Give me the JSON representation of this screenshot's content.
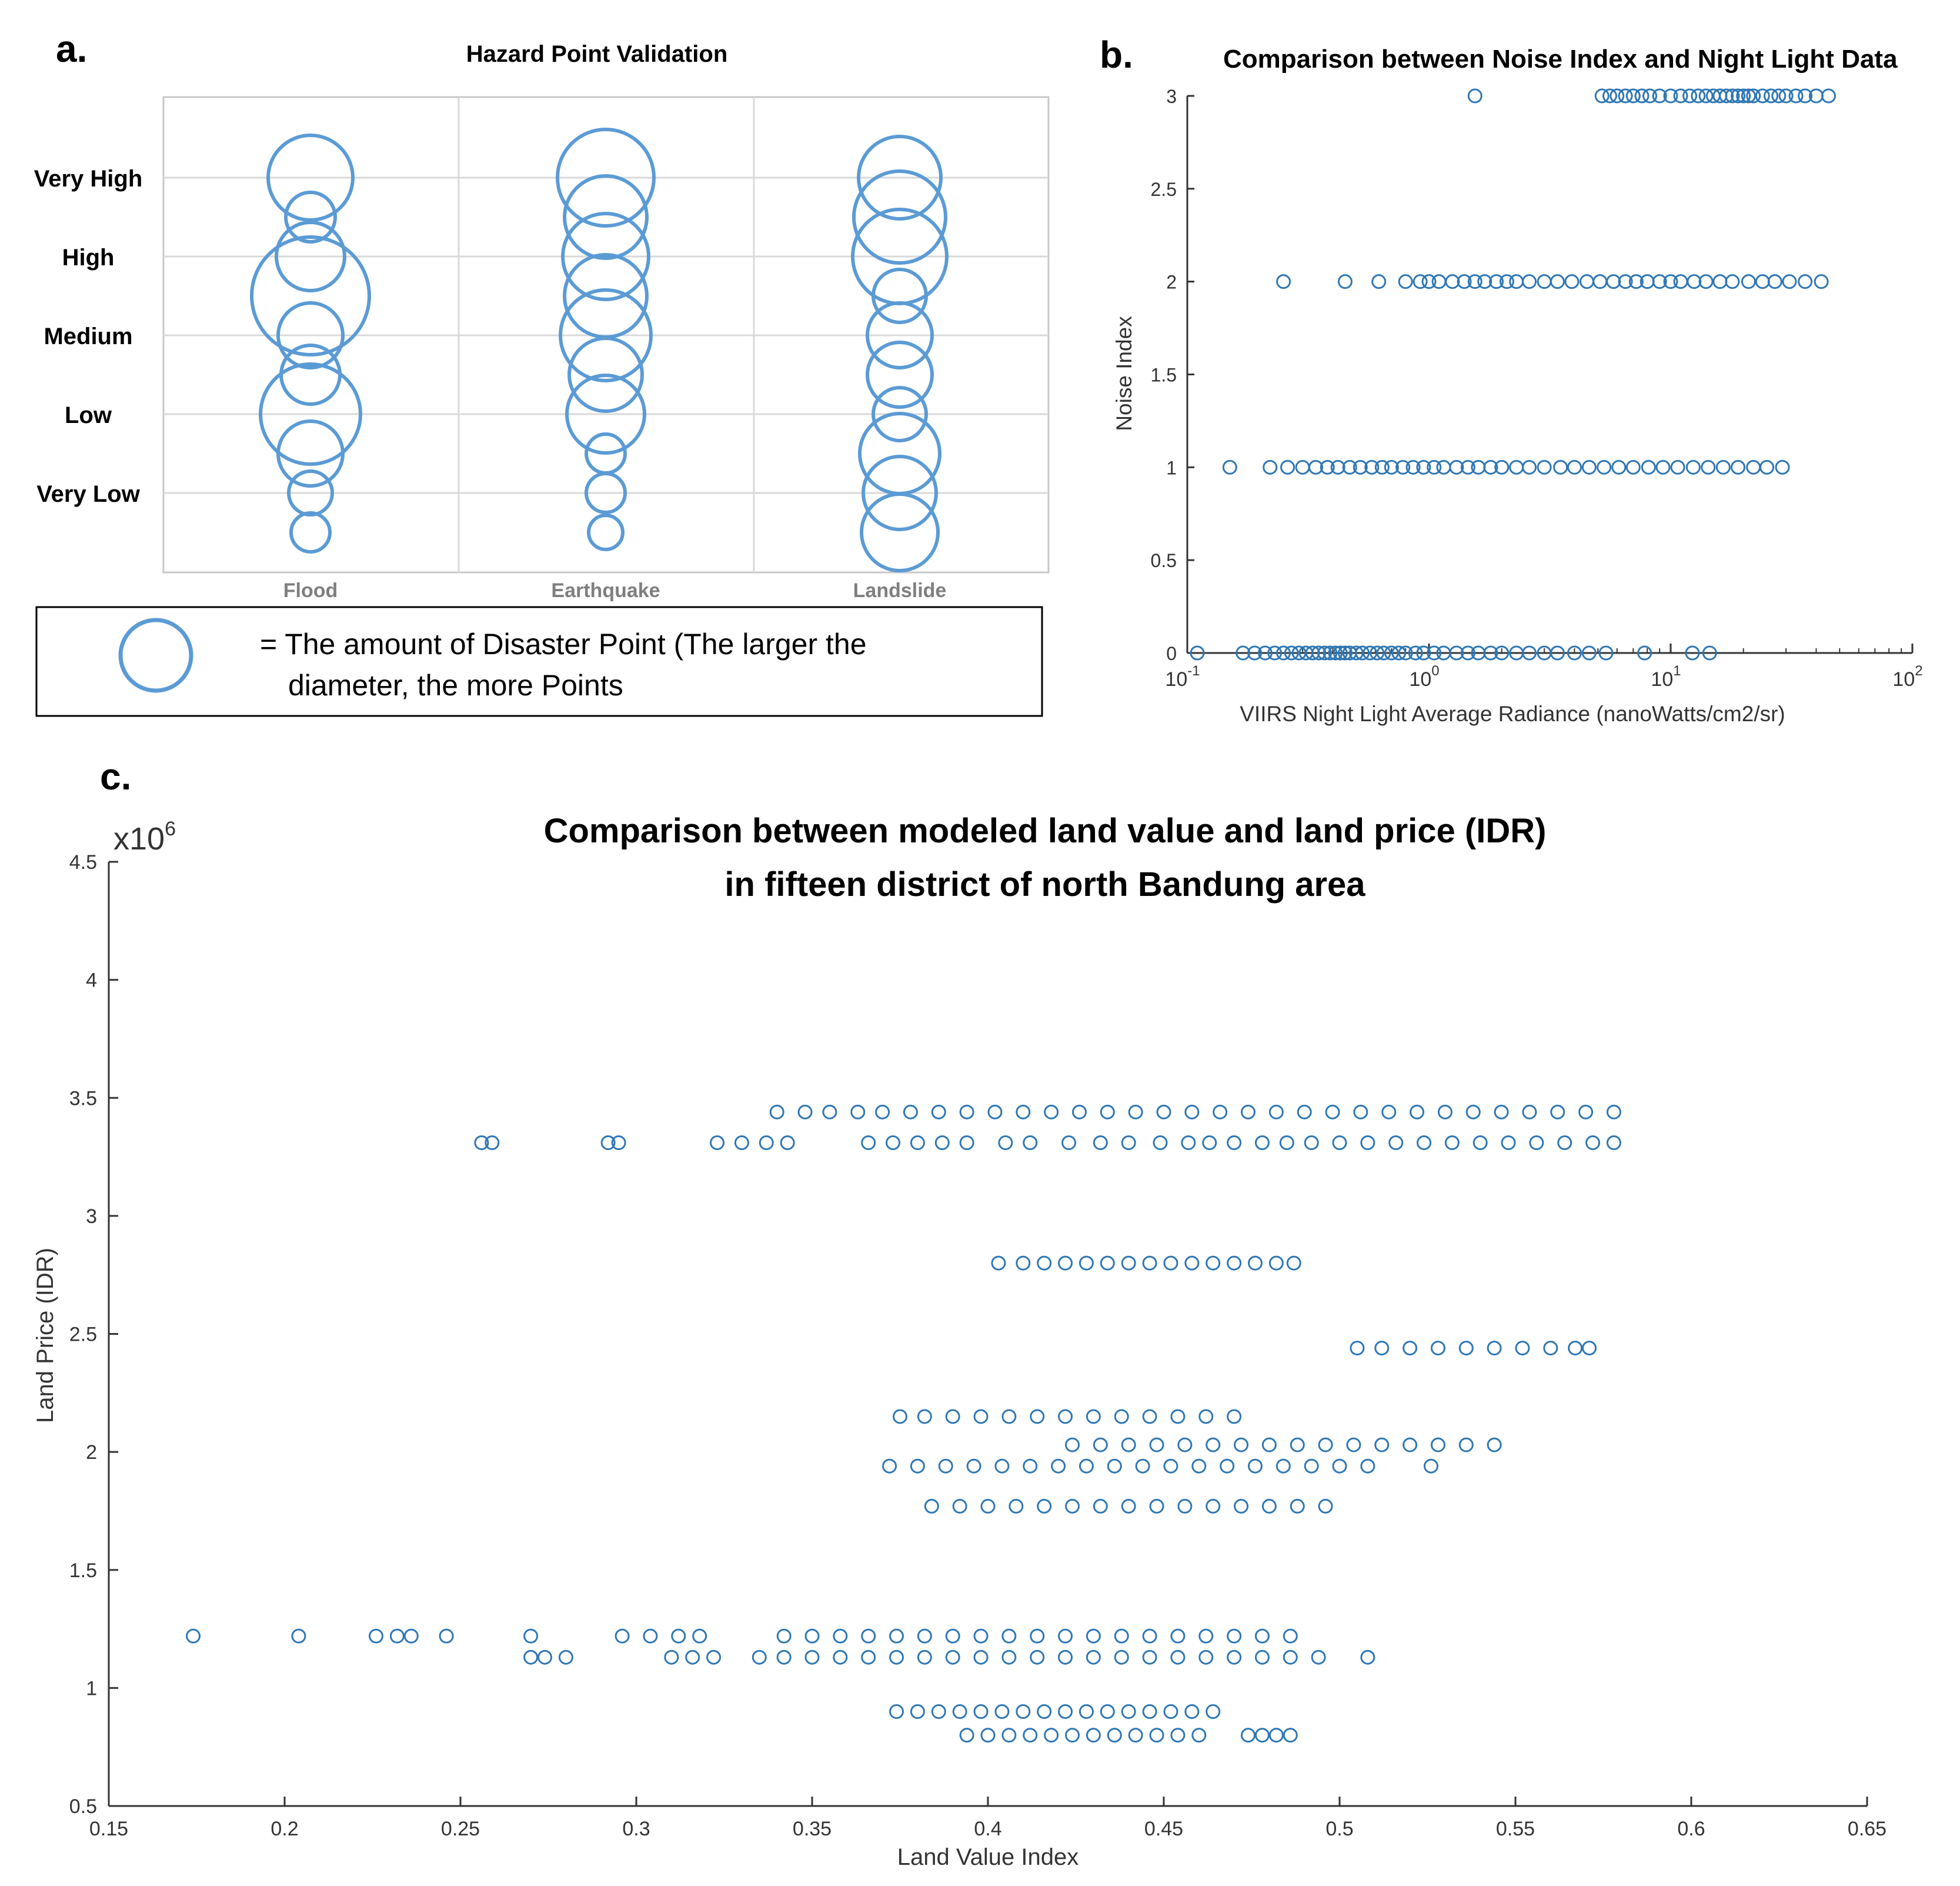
{
  "panels": {
    "a": {
      "label": "a.",
      "title": "Hazard Point Validation",
      "y_levels": [
        "Very High",
        "High",
        "Medium",
        "Low",
        "Very Low"
      ],
      "legend_prefix": "= The amount of Disaster Point (The larger the",
      "legend_line2": "diameter, the more Points",
      "chart_data": {
        "type": "bubble",
        "title": "Hazard Point Validation",
        "categories": [
          "Flood",
          "Earthquake",
          "Landslide"
        ],
        "y_levels": [
          "Very High",
          "High",
          "Medium",
          "Low",
          "Very Low"
        ],
        "note": "Bubble size proportional to amount of disaster points",
        "series": [
          {
            "name": "Flood",
            "bubbles": [
              {
                "level": 5.0,
                "size": 0.72
              },
              {
                "level": 4.5,
                "size": 0.42
              },
              {
                "level": 4.0,
                "size": 0.58
              },
              {
                "level": 3.5,
                "size": 1.0
              },
              {
                "level": 3.0,
                "size": 0.55
              },
              {
                "level": 2.5,
                "size": 0.5
              },
              {
                "level": 2.0,
                "size": 0.85
              },
              {
                "level": 1.5,
                "size": 0.55
              },
              {
                "level": 1.0,
                "size": 0.37
              },
              {
                "level": 0.5,
                "size": 0.33
              }
            ]
          },
          {
            "name": "Earthquake",
            "bubbles": [
              {
                "level": 5.0,
                "size": 0.82
              },
              {
                "level": 4.5,
                "size": 0.7
              },
              {
                "level": 4.0,
                "size": 0.73
              },
              {
                "level": 3.5,
                "size": 0.7
              },
              {
                "level": 3.0,
                "size": 0.77
              },
              {
                "level": 2.5,
                "size": 0.62
              },
              {
                "level": 2.0,
                "size": 0.66
              },
              {
                "level": 1.5,
                "size": 0.33
              },
              {
                "level": 1.0,
                "size": 0.33
              },
              {
                "level": 0.5,
                "size": 0.29
              }
            ]
          },
          {
            "name": "Landslide",
            "bubbles": [
              {
                "level": 5.0,
                "size": 0.7
              },
              {
                "level": 4.5,
                "size": 0.78
              },
              {
                "level": 4.0,
                "size": 0.8
              },
              {
                "level": 3.5,
                "size": 0.45
              },
              {
                "level": 3.0,
                "size": 0.55
              },
              {
                "level": 2.5,
                "size": 0.55
              },
              {
                "level": 2.0,
                "size": 0.45
              },
              {
                "level": 1.5,
                "size": 0.68
              },
              {
                "level": 1.0,
                "size": 0.62
              },
              {
                "level": 0.5,
                "size": 0.65
              }
            ]
          }
        ]
      }
    },
    "b": {
      "label": "b.",
      "title": "Comparison between Noise Index and Night Light Data",
      "exp_minus1": "-1",
      "exp_0": "0",
      "exp_1": "1",
      "exp_2": "2",
      "chart_data": {
        "type": "scatter",
        "title": "Comparison between Noise Index and Night Light Data",
        "xlabel": "VIIRS Night Light Average Radiance (nanoWatts/cm2/sr)",
        "ylabel": "Noise Index",
        "xscale": "log",
        "xlim": [
          0.1,
          100
        ],
        "ylim": [
          0,
          3
        ],
        "xticks": [
          "10",
          "10",
          "10",
          "10"
        ],
        "xtick_exponents": [
          "-1",
          "0",
          "1",
          "2"
        ],
        "yticks": [
          "0",
          "0.5",
          "1",
          "1.5",
          "2",
          "2.5",
          "3"
        ],
        "series": [
          {
            "name": "noise",
            "points_by_y": [
              {
                "y": 3,
                "x": [
                  1.55,
                  5.2,
                  5.6,
                  6.0,
                  6.5,
                  7.0,
                  7.6,
                  8.2,
                  9.0,
                  10,
                  11,
                  12,
                  13,
                  14,
                  15,
                  16,
                  17,
                  18,
                  19,
                  20,
                  21,
                  22,
                  24,
                  26,
                  28,
                  30,
                  33,
                  36,
                  40,
                  45
                ]
              },
              {
                "y": 2,
                "x": [
                  0.25,
                  0.45,
                  0.62,
                  0.8,
                  0.92,
                  1.0,
                  1.1,
                  1.25,
                  1.4,
                  1.55,
                  1.7,
                  1.9,
                  2.1,
                  2.3,
                  2.6,
                  3.0,
                  3.4,
                  3.9,
                  4.5,
                  5.1,
                  5.8,
                  6.5,
                  7.2,
                  8.0,
                  9.0,
                  10,
                  11,
                  12.5,
                  14,
                  16,
                  18,
                  21,
                  24,
                  27,
                  31,
                  36,
                  42
                ]
              },
              {
                "y": 1,
                "x": [
                  0.15,
                  0.22,
                  0.26,
                  0.3,
                  0.34,
                  0.38,
                  0.42,
                  0.47,
                  0.52,
                  0.58,
                  0.64,
                  0.7,
                  0.78,
                  0.86,
                  0.95,
                  1.05,
                  1.15,
                  1.3,
                  1.45,
                  1.6,
                  1.8,
                  2.0,
                  2.3,
                  2.6,
                  3.0,
                  3.5,
                  4.0,
                  4.6,
                  5.3,
                  6.1,
                  7.0,
                  8.1,
                  9.3,
                  10.7,
                  12.4,
                  14.3,
                  16.5,
                  19,
                  22,
                  25,
                  29
                ]
              },
              {
                "y": 0,
                "x": [
                  0.11,
                  0.17,
                  0.19,
                  0.21,
                  0.23,
                  0.25,
                  0.27,
                  0.29,
                  0.31,
                  0.33,
                  0.35,
                  0.37,
                  0.39,
                  0.41,
                  0.43,
                  0.45,
                  0.47,
                  0.5,
                  0.53,
                  0.57,
                  0.61,
                  0.65,
                  0.7,
                  0.75,
                  0.8,
                  0.88,
                  0.95,
                  1.05,
                  1.15,
                  1.3,
                  1.45,
                  1.6,
                  1.8,
                  2.0,
                  2.3,
                  2.6,
                  3.0,
                  3.4,
                  4.0,
                  4.6,
                  5.4,
                  7.8,
                  12.3,
                  14.5
                ]
              }
            ]
          }
        ]
      }
    },
    "c": {
      "label": "c.",
      "title_line1": "Comparison between modeled land value and land price (IDR)",
      "title_line2": "in fifteen district of north Bandung area",
      "multiplier_base": "x10",
      "multiplier_exp": "6",
      "chart_data": {
        "type": "scatter",
        "title": "Comparison between modeled land value and land price (IDR) in fifteen district of north Bandung area",
        "xlabel": "Land Value Index",
        "ylabel": "Land Price (IDR)",
        "y_multiplier": "x10^6",
        "xlim": [
          0.15,
          0.65
        ],
        "ylim": [
          0.5,
          4.5
        ],
        "xticks": [
          "0.15",
          "0.2",
          "0.25",
          "0.3",
          "0.35",
          "0.4",
          "0.45",
          "0.5",
          "0.55",
          "0.6",
          "0.65"
        ],
        "yticks": [
          "0.5",
          "1",
          "1.5",
          "2",
          "2.5",
          "3",
          "3.5",
          "4",
          "4.5"
        ],
        "series": [
          {
            "name": "districts",
            "points_by_y": [
              {
                "y": 3.44,
                "x": [
                  0.34,
                  0.348,
                  0.355,
                  0.363,
                  0.37,
                  0.378,
                  0.386,
                  0.394,
                  0.402,
                  0.41,
                  0.418,
                  0.426,
                  0.434,
                  0.442,
                  0.45,
                  0.458,
                  0.466,
                  0.474,
                  0.482,
                  0.49,
                  0.498,
                  0.506,
                  0.514,
                  0.522,
                  0.53,
                  0.538,
                  0.546,
                  0.554,
                  0.562,
                  0.57,
                  0.578
                ]
              },
              {
                "y": 3.31,
                "x": [
                  0.256,
                  0.259,
                  0.292,
                  0.295,
                  0.323,
                  0.33,
                  0.337,
                  0.343,
                  0.366,
                  0.373,
                  0.38,
                  0.387,
                  0.394,
                  0.405,
                  0.412,
                  0.423,
                  0.432,
                  0.44,
                  0.449,
                  0.457,
                  0.463,
                  0.47,
                  0.478,
                  0.485,
                  0.492,
                  0.5,
                  0.508,
                  0.516,
                  0.524,
                  0.532,
                  0.54,
                  0.548,
                  0.556,
                  0.564,
                  0.572,
                  0.578
                ]
              },
              {
                "y": 2.8,
                "x": [
                  0.403,
                  0.41,
                  0.416,
                  0.422,
                  0.428,
                  0.434,
                  0.44,
                  0.446,
                  0.452,
                  0.458,
                  0.464,
                  0.47,
                  0.476,
                  0.482,
                  0.487
                ]
              },
              {
                "y": 2.44,
                "x": [
                  0.505,
                  0.512,
                  0.52,
                  0.528,
                  0.536,
                  0.544,
                  0.552,
                  0.56,
                  0.567,
                  0.571
                ]
              },
              {
                "y": 2.15,
                "x": [
                  0.375,
                  0.382,
                  0.39,
                  0.398,
                  0.406,
                  0.414,
                  0.422,
                  0.43,
                  0.438,
                  0.446,
                  0.454,
                  0.462,
                  0.47
                ]
              },
              {
                "y": 2.03,
                "x": [
                  0.424,
                  0.432,
                  0.44,
                  0.448,
                  0.456,
                  0.464,
                  0.472,
                  0.48,
                  0.488,
                  0.496,
                  0.504,
                  0.512,
                  0.52,
                  0.528,
                  0.536,
                  0.544
                ]
              },
              {
                "y": 1.94,
                "x": [
                  0.372,
                  0.38,
                  0.388,
                  0.396,
                  0.404,
                  0.412,
                  0.42,
                  0.428,
                  0.436,
                  0.444,
                  0.452,
                  0.46,
                  0.468,
                  0.476,
                  0.484,
                  0.492,
                  0.5,
                  0.508,
                  0.526
                ]
              },
              {
                "y": 1.77,
                "x": [
                  0.384,
                  0.392,
                  0.4,
                  0.408,
                  0.416,
                  0.424,
                  0.432,
                  0.44,
                  0.448,
                  0.456,
                  0.464,
                  0.472,
                  0.48,
                  0.488,
                  0.496
                ]
              },
              {
                "y": 1.22,
                "x": [
                  0.174,
                  0.204,
                  0.226,
                  0.232,
                  0.236,
                  0.246,
                  0.27,
                  0.296,
                  0.304,
                  0.312,
                  0.318,
                  0.342,
                  0.35,
                  0.358,
                  0.366,
                  0.374,
                  0.382,
                  0.39,
                  0.398,
                  0.406,
                  0.414,
                  0.422,
                  0.43,
                  0.438,
                  0.446,
                  0.454,
                  0.462,
                  0.47,
                  0.478,
                  0.486
                ]
              },
              {
                "y": 1.13,
                "x": [
                  0.27,
                  0.274,
                  0.28,
                  0.31,
                  0.316,
                  0.322,
                  0.335,
                  0.342,
                  0.35,
                  0.358,
                  0.366,
                  0.374,
                  0.382,
                  0.39,
                  0.398,
                  0.406,
                  0.414,
                  0.422,
                  0.43,
                  0.438,
                  0.446,
                  0.454,
                  0.462,
                  0.47,
                  0.478,
                  0.486,
                  0.494,
                  0.508
                ]
              },
              {
                "y": 0.9,
                "x": [
                  0.374,
                  0.38,
                  0.386,
                  0.392,
                  0.398,
                  0.404,
                  0.41,
                  0.416,
                  0.422,
                  0.428,
                  0.434,
                  0.44,
                  0.446,
                  0.452,
                  0.458,
                  0.464
                ]
              },
              {
                "y": 0.8,
                "x": [
                  0.394,
                  0.4,
                  0.406,
                  0.412,
                  0.418,
                  0.424,
                  0.43,
                  0.436,
                  0.442,
                  0.448,
                  0.454,
                  0.46,
                  0.474,
                  0.478,
                  0.482,
                  0.486
                ]
              }
            ]
          }
        ]
      }
    }
  },
  "colors": {
    "bubble": "#5b9bd5",
    "marker": "#2f77b4",
    "axis": "#333333",
    "grid": "#d9d9d9",
    "text": "#000000"
  }
}
